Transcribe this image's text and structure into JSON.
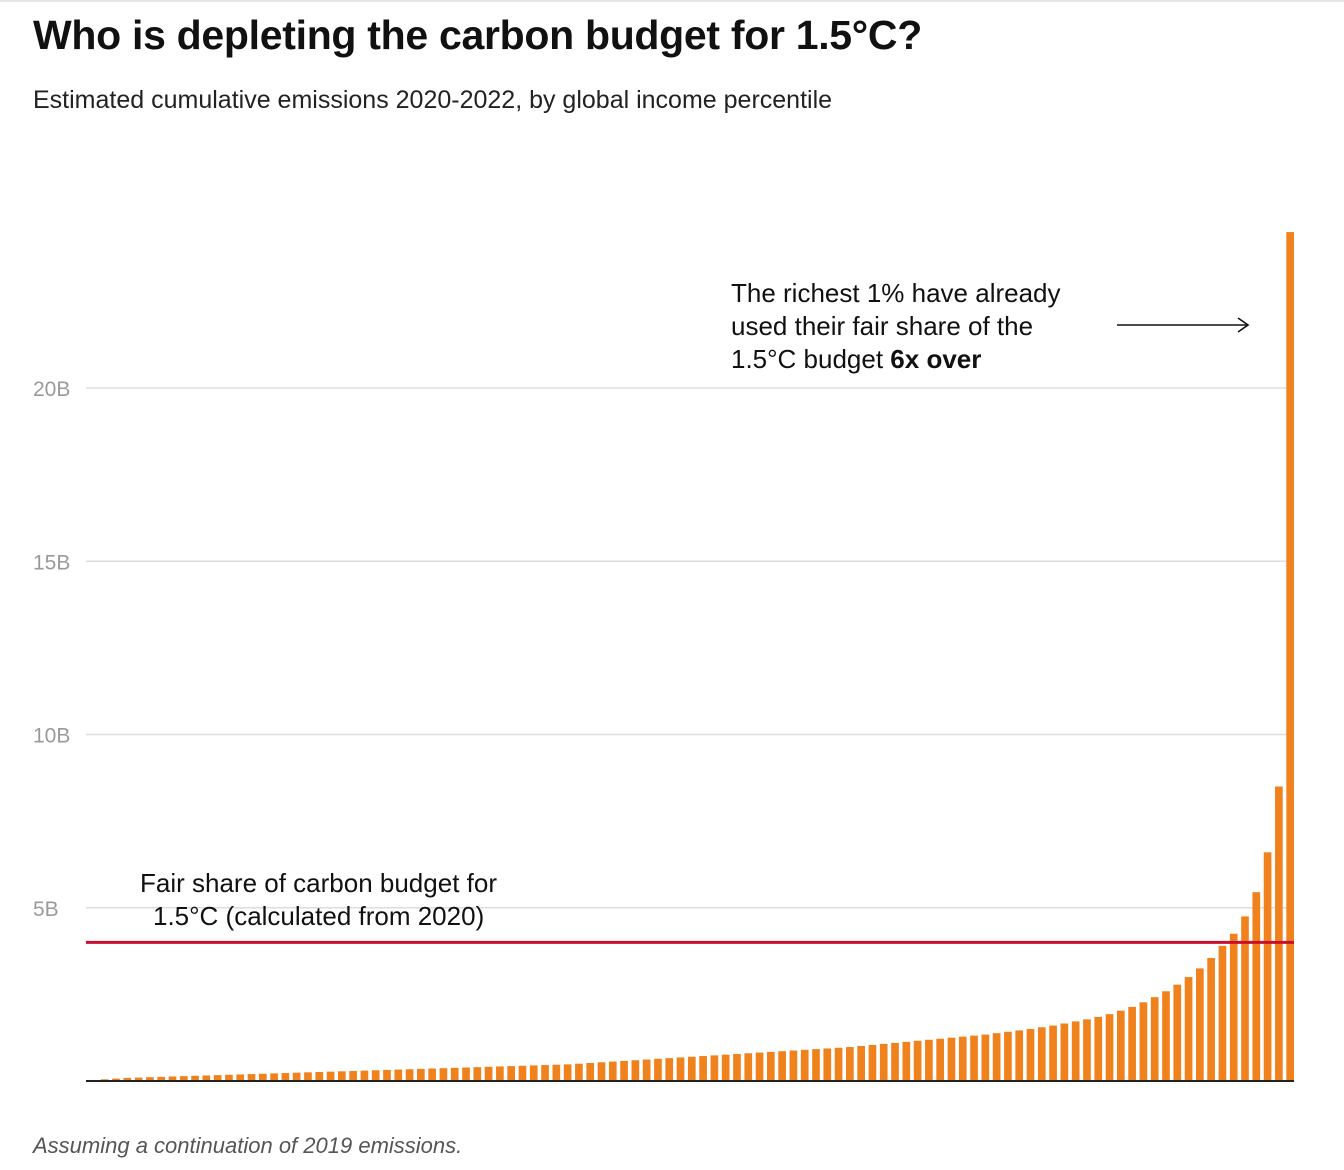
{
  "title": "Who is depleting the carbon budget for 1.5°C?",
  "subtitle": "Estimated cumulative emissions 2020-2022, by global income percentile",
  "footnote": "Assuming a continuation of 2019 emissions.",
  "colors": {
    "bar": "#f0821e",
    "reference_line": "#c8102e",
    "grid": "#dddddd",
    "tick_label": "#9a9a9a"
  },
  "reference_line": {
    "value": 4.0,
    "label_line1": "Fair share of carbon budget for",
    "label_line2": "1.5°C (calculated from 2020)"
  },
  "annotation": {
    "line1": "The richest 1% have already",
    "line2": "used their fair share of the",
    "line3_prefix": "1.5°C budget ",
    "line3_bold": "6x over"
  },
  "chart_data": {
    "type": "bar",
    "title": "Who is depleting the carbon budget for 1.5°C?",
    "subtitle": "Estimated cumulative emissions 2020-2022, by global income percentile",
    "xlabel": "",
    "ylabel": "",
    "ylim": [
      0,
      25
    ],
    "yticks": [
      5,
      10,
      15,
      20
    ],
    "ytick_labels": [
      "5B",
      "10B",
      "15B",
      "20B"
    ],
    "grid": true,
    "legend": "none",
    "series": [
      {
        "values": [
          0.03,
          0.05,
          0.07,
          0.09,
          0.1,
          0.11,
          0.12,
          0.13,
          0.14,
          0.15,
          0.16,
          0.17,
          0.18,
          0.19,
          0.2,
          0.21,
          0.22,
          0.23,
          0.24,
          0.25,
          0.26,
          0.27,
          0.28,
          0.29,
          0.3,
          0.31,
          0.32,
          0.33,
          0.34,
          0.35,
          0.36,
          0.37,
          0.38,
          0.39,
          0.4,
          0.41,
          0.42,
          0.43,
          0.44,
          0.45,
          0.46,
          0.47,
          0.48,
          0.5,
          0.52,
          0.54,
          0.56,
          0.58,
          0.6,
          0.62,
          0.64,
          0.66,
          0.68,
          0.7,
          0.72,
          0.74,
          0.76,
          0.78,
          0.8,
          0.82,
          0.84,
          0.86,
          0.88,
          0.9,
          0.92,
          0.94,
          0.96,
          0.98,
          1.01,
          1.04,
          1.07,
          1.1,
          1.13,
          1.16,
          1.19,
          1.22,
          1.25,
          1.28,
          1.31,
          1.34,
          1.38,
          1.42,
          1.46,
          1.5,
          1.55,
          1.6,
          1.66,
          1.72,
          1.78,
          1.85,
          1.93,
          2.03,
          2.14,
          2.27,
          2.42,
          2.59,
          2.78,
          3.0,
          3.25,
          3.55,
          3.9,
          4.25,
          4.75,
          5.45,
          6.6,
          8.5,
          24.5
        ]
      }
    ]
  }
}
